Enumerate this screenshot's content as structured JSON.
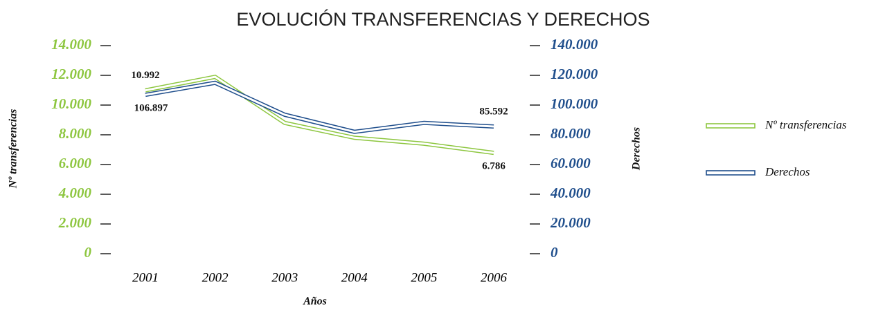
{
  "chart_data": {
    "type": "line",
    "title": "EVOLUCIÓN TRANSFERENCIAS Y DERECHOS",
    "x_label": "Años",
    "y_label": "Nº transferencias",
    "y2_label": "Derechos",
    "categories": [
      "2001",
      "2002",
      "2003",
      "2004",
      "2005",
      "2006"
    ],
    "series": [
      {
        "name": "Nº transferencias",
        "color": "#8dc63f",
        "axis": "y",
        "values": [
          10992,
          11900,
          8800,
          7800,
          7400,
          6786
        ],
        "value_labels": [
          "10.992",
          null,
          null,
          null,
          null,
          "6.786"
        ]
      },
      {
        "name": "Derechos",
        "color": "#1f4e8c",
        "axis": "y2",
        "values": [
          106897,
          115000,
          93500,
          82000,
          88000,
          85592
        ],
        "value_labels": [
          "106.897",
          null,
          null,
          null,
          null,
          "85.592"
        ]
      }
    ],
    "ylim": [
      0,
      14000
    ],
    "yticks": [
      0,
      {
        "value": 2000,
        "label": "2.000"
      },
      {
        "value": 4000,
        "label": "4.000"
      },
      {
        "value": 6000,
        "label": "6.000"
      },
      {
        "value": 8000,
        "label": "8.000"
      },
      {
        "value": 10000,
        "label": "10.000"
      },
      {
        "value": 12000,
        "label": "12.000"
      },
      {
        "value": 14000,
        "label": "14.000"
      }
    ],
    "y2lim": [
      0,
      140000
    ],
    "y2ticks": [
      0,
      {
        "value": 20000,
        "label": "20.000"
      },
      {
        "value": 40000,
        "label": "40.000"
      },
      {
        "value": 60000,
        "label": "60.000"
      },
      {
        "value": 80000,
        "label": "80.000"
      },
      {
        "value": 100000,
        "label": "100.000"
      },
      {
        "value": 120000,
        "label": "120.000"
      },
      {
        "value": 140000,
        "label": "140.000"
      }
    ],
    "legend": "right"
  }
}
